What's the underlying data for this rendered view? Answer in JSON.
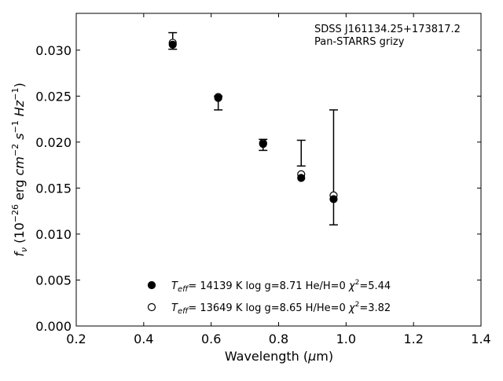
{
  "chart_data": {
    "type": "scatter",
    "annotation_lines": [
      "SDSS J161134.25+173817.2",
      "Pan-STARRS grizy"
    ],
    "xlabel_prefix": "Wavelength (",
    "xlabel_unit": "μ",
    "xlabel_suffix": "m)",
    "ylabel_f": "f",
    "ylabel_nu": "ν",
    "ylabel_open": " (10",
    "ylabel_exp1": "−26",
    "ylabel_erg": " erg ",
    "ylabel_cm": "cm",
    "ylabel_exp2": "−2",
    "ylabel_s": " s",
    "ylabel_exp3": "−1",
    "ylabel_hz": " Hz",
    "ylabel_exp4": "−1",
    "ylabel_close": ")",
    "xlim": [
      0.2,
      1.4
    ],
    "ylim": [
      0.0,
      0.034
    ],
    "x_ticks": [
      0.2,
      0.4,
      0.6,
      0.8,
      1.0,
      1.2,
      1.4
    ],
    "x_tick_labels": [
      "0.2",
      "0.4",
      "0.6",
      "0.8",
      "1.0",
      "1.2",
      "1.4"
    ],
    "y_ticks": [
      0.0,
      0.005,
      0.01,
      0.015,
      0.02,
      0.025,
      0.03
    ],
    "y_tick_labels": [
      "0.000",
      "0.005",
      "0.010",
      "0.015",
      "0.020",
      "0.025",
      "0.030"
    ],
    "observed": {
      "x": [
        0.486,
        0.621,
        0.754,
        0.867,
        0.963
      ],
      "y": [
        0.031,
        0.0245,
        0.0197,
        0.0188,
        0.0173
      ],
      "yerr_low": [
        0.0009,
        0.001,
        0.0006,
        0.0014,
        0.0063
      ],
      "yerr_high": [
        0.0009,
        0.0005,
        0.0006,
        0.0014,
        0.0062
      ]
    },
    "series": [
      {
        "name_T": "T",
        "name_eff": "eff",
        "name_rest": "= 14139 K  log g=8.71  He/H=0  ",
        "name_chi": "χ",
        "name_chi_exp": "2",
        "name_chi_val": "=5.44",
        "marker": "filled",
        "x": [
          0.486,
          0.621,
          0.754,
          0.867,
          0.963
        ],
        "y": [
          0.0306,
          0.0248,
          0.0198,
          0.0161,
          0.0138
        ]
      },
      {
        "name_T": "T",
        "name_eff": "eff",
        "name_rest": "= 13649 K  log g=8.65  H/He=0  ",
        "name_chi": "χ",
        "name_chi_exp": "2",
        "name_chi_val": "=3.82",
        "marker": "open",
        "x": [
          0.486,
          0.621,
          0.754,
          0.867,
          0.963
        ],
        "y": [
          0.0308,
          0.0249,
          0.0199,
          0.0165,
          0.0142
        ]
      }
    ],
    "grid": false,
    "legend_location": "lower center",
    "annotation_location": "upper right"
  }
}
